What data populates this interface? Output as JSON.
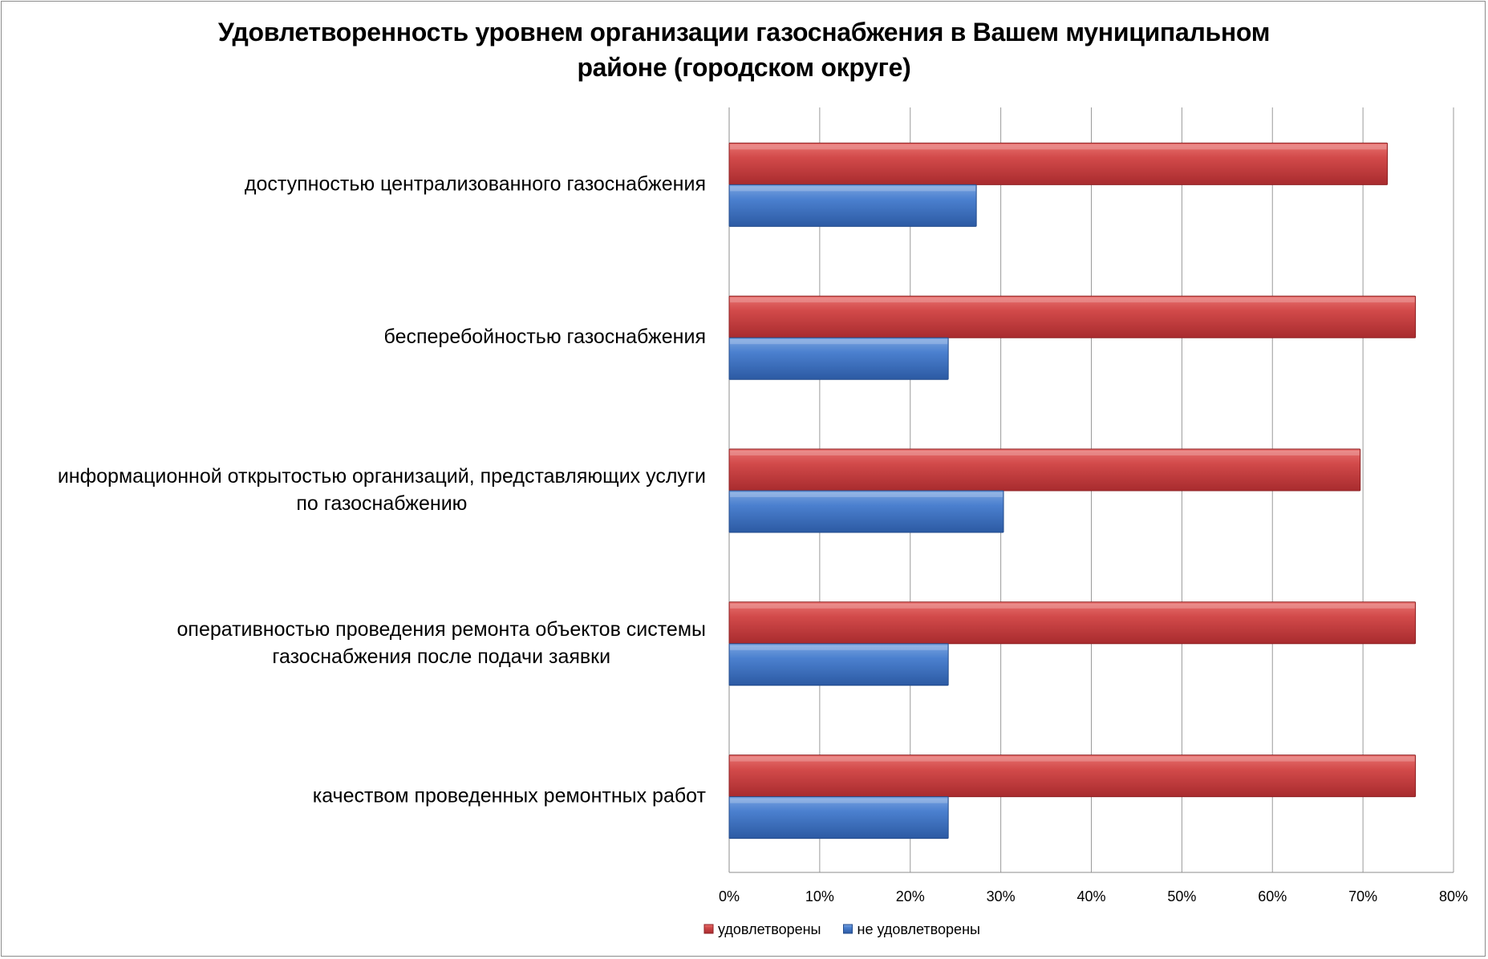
{
  "chart_data": {
    "type": "bar",
    "orientation": "horizontal",
    "title": "Удовлетворенность уровнем организации газоснабжения в Вашем муниципальном районе (городском округе)",
    "title_lines": [
      "Удовлетворенность уровнем организации газоснабжения в Вашем муниципальном",
      "районе (городском округе)"
    ],
    "categories": [
      "доступностью централизованного газоснабжения",
      "бесперебойностью  газоснабжения",
      "информационной открытостью организаций, представляющих услуги по газоснабжению",
      "оперативностью проведения ремонта объектов системы газоснабжения после подачи заявки",
      "качеством проведенных ремонтных работ"
    ],
    "category_lines": [
      [
        "доступностью централизованного газоснабжения"
      ],
      [
        "бесперебойностью  газоснабжения"
      ],
      [
        "информационной открытостью организаций, представляющих услуги",
        "по газоснабжению"
      ],
      [
        "оперативностью проведения ремонта объектов системы",
        "газоснабжения после подачи заявки"
      ],
      [
        "качеством проведенных ремонтных работ"
      ]
    ],
    "series": [
      {
        "name": "удовлетворены",
        "color": "#c0393b",
        "values": [
          72.7,
          75.8,
          69.7,
          75.8,
          75.8
        ]
      },
      {
        "name": "не удовлетворены",
        "color": "#3a6fbf",
        "values": [
          27.3,
          24.2,
          30.3,
          24.2,
          24.2
        ]
      }
    ],
    "xlim": [
      0,
      80
    ],
    "xticks": [
      "0%",
      "10%",
      "20%",
      "30%",
      "40%",
      "50%",
      "60%",
      "70%",
      "80%"
    ],
    "grid": true,
    "legend": "bottom"
  }
}
